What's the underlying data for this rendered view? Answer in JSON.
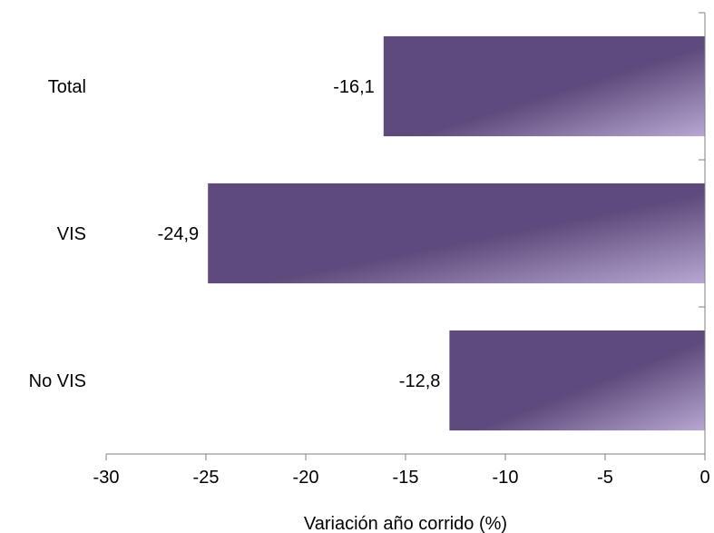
{
  "chart_data": {
    "type": "bar",
    "orientation": "horizontal",
    "categories": [
      "Total",
      "VIS",
      "No VIS"
    ],
    "values": [
      -16.1,
      -24.9,
      -12.8
    ],
    "data_labels": [
      "-16,1",
      "-24,9",
      "-12,8"
    ],
    "xlabel": "Variación año corrido (%)",
    "ylabel": "",
    "xlim": [
      -30,
      0
    ],
    "xticks": [
      -30,
      -25,
      -20,
      -15,
      -10,
      -5,
      0
    ],
    "xtick_labels": [
      "-30",
      "-25",
      "-20",
      "-15",
      "-10",
      "-5",
      "0"
    ],
    "grid": false,
    "legend": "none",
    "bar_color_dark": "#5e4a7c",
    "bar_color_light": "#b7a7d2",
    "axis_color": "#808080"
  }
}
